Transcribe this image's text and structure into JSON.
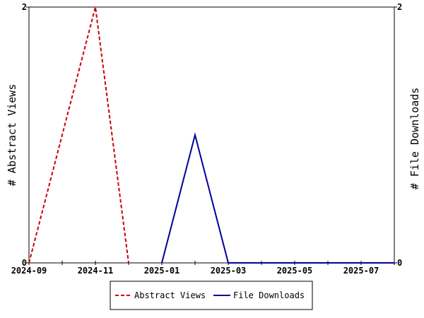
{
  "chart_data": {
    "type": "line",
    "title": "",
    "xlabel": "",
    "ylabel_left": "# Abstract Views",
    "ylabel_right": "# File Downloads",
    "x": [
      "2024-09",
      "2024-10",
      "2024-11",
      "2024-12",
      "2025-01",
      "2025-02",
      "2025-03",
      "2025-04",
      "2025-05",
      "2025-06",
      "2025-07",
      "2025-08"
    ],
    "x_tick_labels": [
      "2024-09",
      "2024-11",
      "2025-01",
      "2025-03",
      "2025-05",
      "2025-07"
    ],
    "ylim_left": [
      0,
      2
    ],
    "ylim_right": [
      0,
      2
    ],
    "y_ticks_left": [
      "0",
      "2"
    ],
    "y_ticks_right": [
      "0",
      "2"
    ],
    "grid": false,
    "legend_position": "bottom-center",
    "series": [
      {
        "name": "Abstract Views",
        "axis": "left",
        "color": "#cc0000",
        "dash": "dashed",
        "x": [
          "2024-09",
          "2024-11",
          "2024-12"
        ],
        "values": [
          0,
          2,
          0
        ]
      },
      {
        "name": "File Downloads",
        "axis": "right",
        "color": "#000099",
        "dash": "solid",
        "x": [
          "2025-01",
          "2025-02",
          "2025-03",
          "2025-04",
          "2025-05",
          "2025-06",
          "2025-07",
          "2025-08"
        ],
        "values": [
          0,
          1,
          0,
          0,
          0,
          0,
          0,
          0
        ]
      }
    ]
  }
}
